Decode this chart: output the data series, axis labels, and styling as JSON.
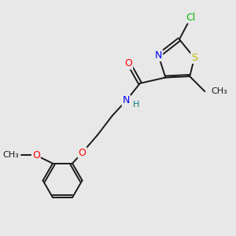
{
  "bg_color": "#e8e8e8",
  "bond_color": "#1a1a1a",
  "bond_lw": 1.4,
  "atom_colors": {
    "Cl": "#00bb00",
    "N": "#0000ff",
    "O": "#ff0000",
    "S": "#bbbb00",
    "C": "#1a1a1a",
    "H": "#008080"
  },
  "font_size": 9,
  "font_size_small": 8
}
